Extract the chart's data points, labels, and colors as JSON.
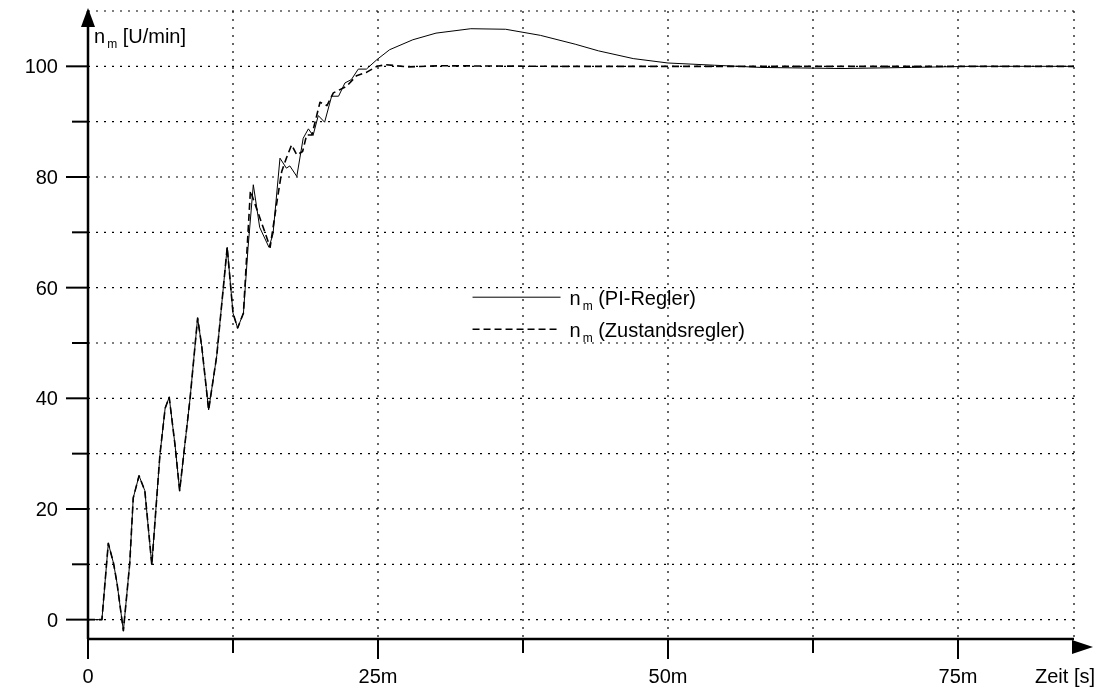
{
  "chart_data": {
    "type": "line",
    "xlabel": "Zeit [s]",
    "ylabel": "n$_{m}$ [U/min]",
    "xlim": [
      0,
      85
    ],
    "ylim": [
      -3.5,
      110
    ],
    "xticks": [
      0,
      {
        "value": 12.5,
        "label": null
      },
      {
        "value": 25,
        "label": "25m"
      },
      {
        "value": 37.5,
        "label": null
      },
      {
        "value": 50,
        "label": "50m"
      },
      {
        "value": 62.5,
        "label": null
      },
      {
        "value": 75,
        "label": "75m"
      }
    ],
    "yticks": [
      0,
      {
        "value": 10,
        "label": null
      },
      20,
      {
        "value": 30,
        "label": null
      },
      40,
      {
        "value": 50,
        "label": null
      },
      60,
      {
        "value": 70,
        "label": null
      },
      80,
      {
        "value": 90,
        "label": null
      },
      100
    ],
    "grid": true,
    "legend": "center",
    "marker": "none",
    "series": [
      {
        "name": "n$_{m}$ (PI-Regler)",
        "color": "#000000",
        "line_style": "solid",
        "x": [
          0,
          1.2,
          1.75,
          2.2,
          2.5,
          3.05,
          3.6,
          3.9,
          4.4,
          4.9,
          5.5,
          6.2,
          6.65,
          7.0,
          7.5,
          7.9,
          8.8,
          9.45,
          9.8,
          10.4,
          11.1,
          12.0,
          12.5,
          12.9,
          13.4,
          13.8,
          14.25,
          14.8,
          15.6,
          15.95,
          16.55,
          17.1,
          17.4,
          18.0,
          18.55,
          19.0,
          19.4,
          19.85,
          20.4,
          21.0,
          21.6,
          22.15,
          22.7,
          23.3,
          24.0,
          24.9,
          26,
          28,
          30,
          33,
          36,
          39,
          42,
          44,
          47,
          50,
          54,
          58,
          65,
          71,
          76,
          85
        ],
        "values": [
          0,
          0,
          13.8,
          10.2,
          6.6,
          -2,
          10.2,
          22,
          26,
          23.3,
          9.9,
          29.8,
          38.2,
          40.2,
          31.6,
          23.3,
          40,
          54.5,
          49.5,
          37.9,
          47.7,
          67.3,
          55.4,
          52.7,
          55.4,
          67.3,
          78.6,
          70.9,
          67.3,
          69.7,
          83.4,
          81.6,
          82,
          80.1,
          87,
          88.7,
          87.5,
          91.1,
          89.9,
          94.6,
          94.6,
          97,
          97.6,
          99.5,
          99.5,
          101.2,
          103,
          104.8,
          106,
          106.8,
          106.7,
          105.6,
          104,
          102.8,
          101.4,
          100.6,
          100.2,
          99.8,
          99.6,
          99.8,
          100,
          100
        ]
      },
      {
        "name": "n$_{m}$ (Zustandsregler)",
        "color": "#000000",
        "line_style": "dashed",
        "x": [
          0,
          1.2,
          1.75,
          2.2,
          2.5,
          3.05,
          3.6,
          3.9,
          4.4,
          4.9,
          5.5,
          6.2,
          6.65,
          7.0,
          7.5,
          7.9,
          8.8,
          9.45,
          9.8,
          10.4,
          11.1,
          12.0,
          12.5,
          12.9,
          13.4,
          14.0,
          14.5,
          15.1,
          15.7,
          16.3,
          16.7,
          17.1,
          17.55,
          18.0,
          18.5,
          18.85,
          19.3,
          20.0,
          20.6,
          21.15,
          22.3,
          23.15,
          24.0,
          24.9,
          25.7,
          27.5,
          30.4,
          40,
          50,
          60,
          70,
          85
        ],
        "values": [
          0,
          0,
          13.8,
          10.2,
          6.6,
          -2,
          10.2,
          22,
          26,
          23.3,
          9.9,
          29.8,
          38.2,
          40.2,
          31.6,
          23.3,
          40,
          54.5,
          49.5,
          37.9,
          47.7,
          67.3,
          55.4,
          52.7,
          55.4,
          77.5,
          74.5,
          70.9,
          67.3,
          75.7,
          81,
          83.4,
          85.8,
          84,
          84.6,
          87.6,
          87.6,
          93.5,
          92.9,
          95.2,
          96.4,
          98.3,
          98.9,
          100,
          100.3,
          99.9,
          100.1,
          100,
          100,
          100,
          100,
          100
        ]
      }
    ]
  }
}
